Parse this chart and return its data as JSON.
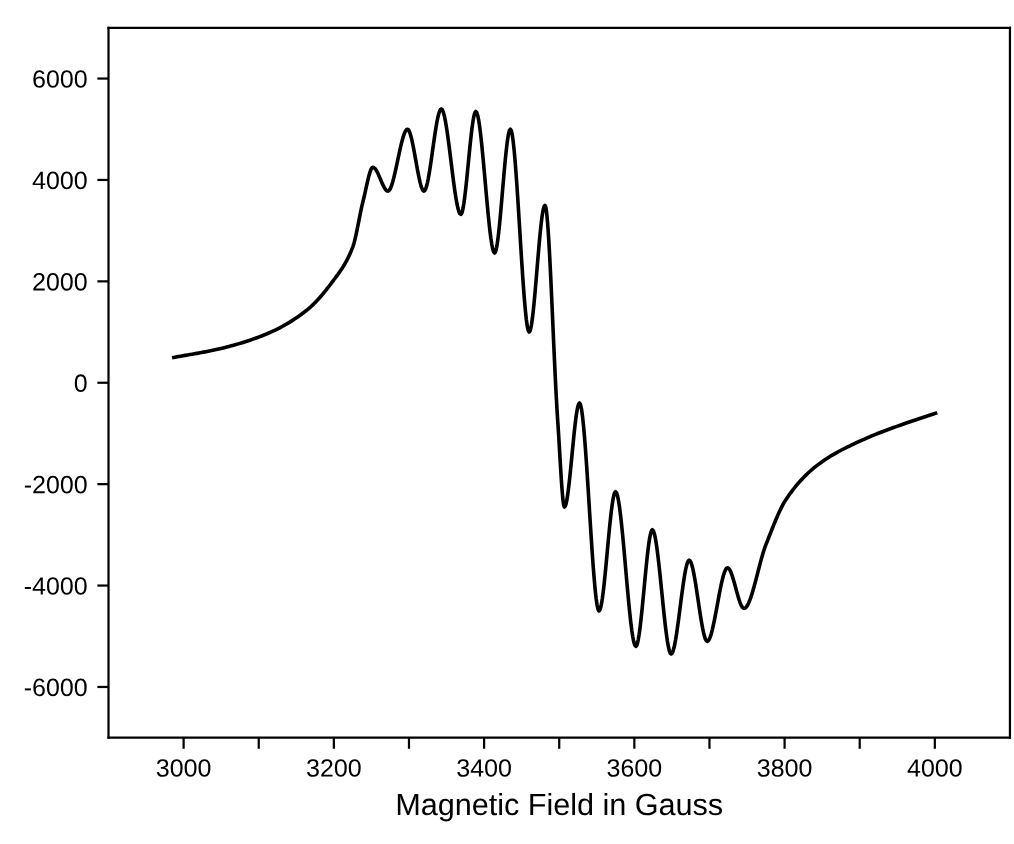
{
  "chart_data": {
    "type": "line",
    "xlabel": "Magnetic Field in Gauss",
    "xlim": [
      2900,
      4100
    ],
    "ylim": [
      -7000,
      7000
    ],
    "xticks": [
      3000,
      {
        "value": 3100,
        "label": null
      },
      3200,
      {
        "value": 3300,
        "label": null
      },
      3400,
      {
        "value": 3500,
        "label": null
      },
      3600,
      {
        "value": 3700,
        "label": null
      },
      3800,
      {
        "value": 3900,
        "label": null
      },
      4000
    ],
    "yticks": [
      -6000,
      -4000,
      -2000,
      0,
      2000,
      4000,
      6000
    ],
    "grid": false,
    "legend": false,
    "marker": "none",
    "line_style": "solid",
    "series": [
      {
        "color": "#000000",
        "x": [
          2987,
          3048,
          3110,
          3163,
          3199,
          3225,
          3239,
          3252,
          3272,
          3298,
          3320,
          3343,
          3369,
          3389,
          3414,
          3435,
          3460,
          3481,
          3498,
          3507,
          3527,
          3553,
          3575,
          3602,
          3624,
          3649,
          3673,
          3697,
          3724,
          3746,
          3775,
          3802,
          3846,
          3908,
          3961,
          4001
        ],
        "values": [
          500,
          670,
          960,
          1420,
          2010,
          2670,
          3590,
          4250,
          3780,
          5000,
          3780,
          5400,
          3320,
          5350,
          2560,
          5000,
          1000,
          3500,
          -750,
          -2450,
          -400,
          -4500,
          -2150,
          -5200,
          -2900,
          -5350,
          -3500,
          -5100,
          -3650,
          -4450,
          -3200,
          -2300,
          -1600,
          -1100,
          -800,
          -600
        ]
      }
    ]
  }
}
